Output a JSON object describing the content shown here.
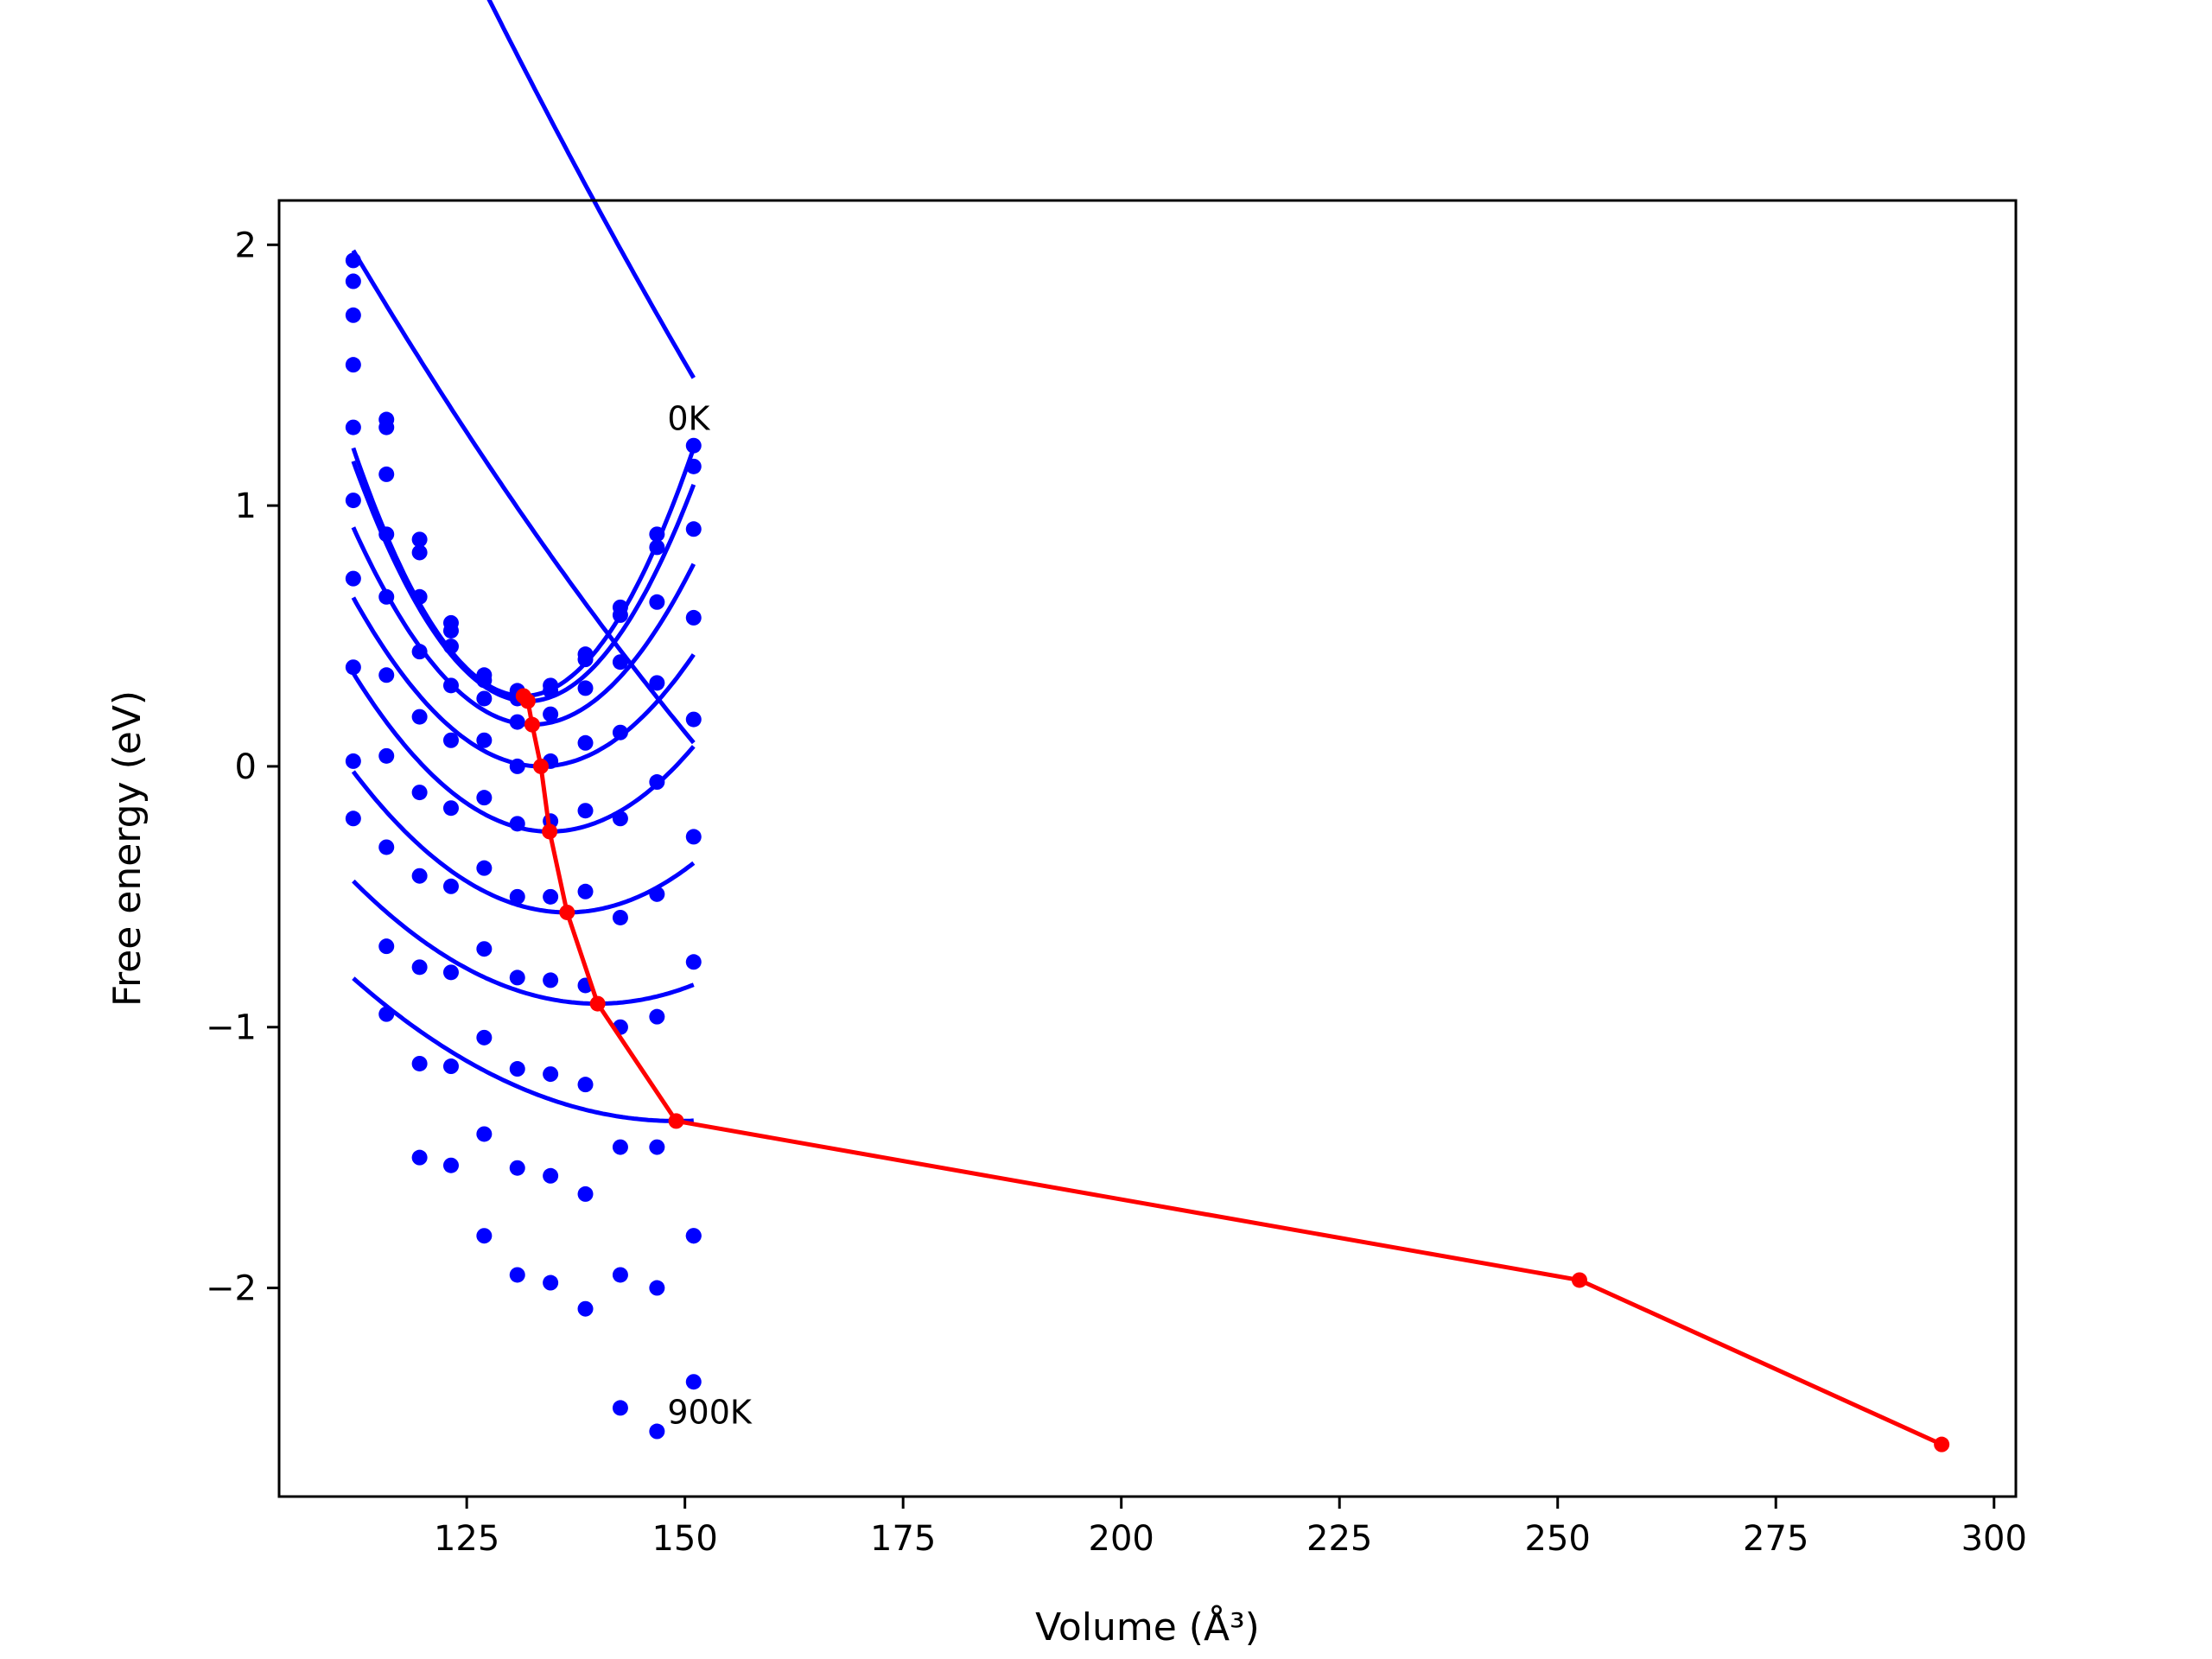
{
  "chart_data": {
    "type": "line",
    "xlabel": "Volume (Å³)",
    "ylabel": "Free energy (eV)",
    "xlim": [
      103.5,
      302.5
    ],
    "ylim": [
      -2.8,
      2.17
    ],
    "xticks": [
      125,
      150,
      175,
      200,
      225,
      250,
      275,
      300
    ],
    "yticks": [
      -2,
      -1,
      0,
      1,
      2
    ],
    "ytick_labels": [
      "−2",
      "−1",
      "0",
      "1",
      "2"
    ],
    "annotations": [
      {
        "text": "0K",
        "x": 147.0,
        "y": 1.29
      },
      {
        "text": "900K",
        "x": 147.0,
        "y": -2.52
      }
    ],
    "volumes": [
      112.0,
      115.8,
      119.6,
      123.2,
      127.0,
      130.8,
      134.6,
      138.6,
      142.6,
      146.8,
      151.0
    ],
    "series": [
      {
        "values": [
          1.94,
          1.33,
          0.87,
          0.55,
          0.35,
          0.29,
          0.31,
          0.43,
          0.61,
          0.89,
          1.23
        ],
        "fit": {
          "vmin": 131.5,
          "emin": 0.27,
          "a": 0.0025,
          "b": 0.09
        }
      },
      {
        "values": [
          1.86,
          1.3,
          0.82,
          0.52,
          0.33,
          0.26,
          0.29,
          0.41,
          0.58,
          0.84,
          1.15
        ],
        "fit": {
          "vmin": 132.0,
          "emin": 0.25,
          "a": 0.0023,
          "b": 0.09
        }
      },
      {
        "values": [
          1.73,
          1.12,
          0.65,
          0.46,
          0.26,
          0.17,
          0.2,
          0.3,
          0.4,
          0.63,
          0.91
        ],
        "fit": {
          "vmin": 132.5,
          "emin": 0.16,
          "a": 0.0018,
          "b": 0.09
        }
      },
      {
        "values": [
          1.54,
          0.89,
          0.44,
          0.31,
          0.1,
          0.0,
          0.02,
          0.09,
          0.13,
          0.32,
          0.57
        ],
        "fit": {
          "vmin": 133.5,
          "emin": 0.0,
          "a": 0.0014,
          "b": 0.09
        }
      },
      {
        "values": [
          1.3,
          0.65,
          0.19,
          0.1,
          -0.12,
          -0.22,
          -0.21,
          -0.17,
          -0.2,
          -0.06,
          0.18
        ],
        "fit": {
          "vmin": 134.5,
          "emin": -0.25,
          "a": 0.0012,
          "b": 0.09
        }
      },
      {
        "values": [
          1.02,
          0.35,
          -0.1,
          -0.16,
          -0.39,
          -0.5,
          -0.5,
          -0.48,
          -0.58,
          -0.49,
          -0.27
        ],
        "fit": {
          "vmin": 136.5,
          "emin": -0.56,
          "a": 0.0009,
          "b": 0.09
        }
      },
      {
        "values": [
          0.72,
          0.04,
          -0.42,
          -0.46,
          -0.7,
          -0.81,
          -0.82,
          -0.84,
          -1.0,
          -0.96,
          -0.75
        ],
        "fit": {
          "vmin": 140.0,
          "emin": -0.91,
          "a": 0.0006,
          "b": 0.09
        }
      },
      {
        "values": [
          0.38,
          -0.31,
          -0.77,
          -0.79,
          -1.04,
          -1.16,
          -1.18,
          -1.22,
          -1.46,
          -1.46,
          -1.8
        ],
        "fit": {
          "vmin": 149.0,
          "emin": -1.36,
          "a": 0.0004,
          "b": 0.09
        }
      },
      {
        "values": [
          0.02,
          -0.69,
          -1.14,
          -1.15,
          -1.41,
          -1.54,
          -1.57,
          -1.64,
          -1.95,
          -2.0,
          -1.8
        ],
        "fit": {
          "vmin": 252.5,
          "emin": -1.97,
          "a": 0.0002,
          "b": 0.09
        }
      },
      {
        "values": [
          -0.2,
          -0.95,
          -1.5,
          -1.53,
          -1.8,
          -1.95,
          -1.98,
          -2.08,
          -2.46,
          -2.55,
          -2.36
        ],
        "fit": {
          "vmin": 294.0,
          "emin": -2.6,
          "a": 0.0002,
          "b": 0.09
        }
      }
    ],
    "minima": {
      "x": [
        131.5,
        132.0,
        132.5,
        133.5,
        134.5,
        136.5,
        140.0,
        149.0,
        252.5,
        294.0
      ],
      "y": [
        0.27,
        0.25,
        0.16,
        0.0,
        -0.25,
        -0.56,
        -0.91,
        -1.36,
        -1.97,
        -2.6
      ]
    },
    "colors": {
      "curves": "#0000ff",
      "minima": "#ff0000"
    }
  }
}
